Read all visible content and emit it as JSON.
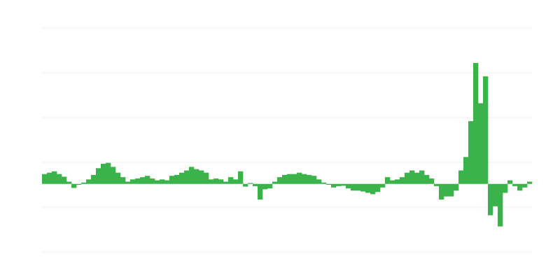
{
  "chart_data": {
    "type": "bar",
    "title": "",
    "xlabel": "",
    "ylabel": "",
    "ylim": [
      -1.52,
      3.48
    ],
    "gridlines": [
      -1.52,
      -0.52,
      0.48,
      1.48,
      2.48,
      3.48
    ],
    "grid": true,
    "legend": "none",
    "color": "#39b34a",
    "grid_color": "#eeeeee",
    "values": [
      0.22,
      0.25,
      0.28,
      0.22,
      0.16,
      0.05,
      -0.09,
      -0.02,
      0.03,
      0.1,
      0.2,
      0.35,
      0.45,
      0.47,
      0.38,
      0.25,
      0.15,
      0.05,
      0.1,
      0.12,
      0.15,
      0.18,
      0.12,
      0.08,
      0.1,
      0.08,
      0.18,
      0.2,
      0.25,
      0.3,
      0.38,
      0.33,
      0.3,
      0.25,
      0.1,
      0.12,
      0.1,
      0.05,
      0.15,
      0.1,
      0.28,
      -0.06,
      0.02,
      -0.05,
      -0.35,
      -0.12,
      -0.1,
      0.05,
      0.15,
      0.2,
      0.22,
      0.22,
      0.25,
      0.22,
      0.2,
      0.18,
      0.1,
      0.03,
      -0.02,
      -0.08,
      -0.05,
      -0.04,
      -0.1,
      -0.15,
      -0.15,
      -0.17,
      -0.2,
      -0.23,
      -0.18,
      -0.08,
      0.15,
      0.08,
      0.1,
      0.15,
      0.25,
      0.3,
      0.25,
      0.3,
      0.2,
      0.12,
      -0.05,
      -0.35,
      -0.28,
      -0.28,
      -0.15,
      0.3,
      0.6,
      1.4,
      2.7,
      1.8,
      2.4,
      -0.7,
      -0.5,
      -0.95,
      -0.2,
      0.08,
      -0.05,
      -0.15,
      -0.08,
      0.05
    ]
  }
}
